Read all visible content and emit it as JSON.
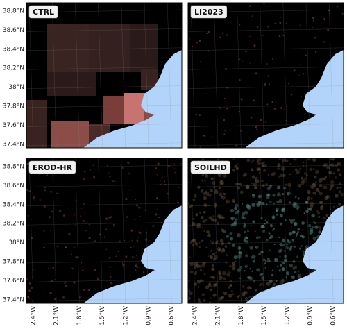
{
  "panels": [
    {
      "label": "CTRL"
    },
    {
      "label": "LI2023"
    },
    {
      "label": "EROD-HR"
    },
    {
      "label": "SOILHD"
    }
  ],
  "lat_labels": [
    "38.8°N",
    "38.6°N",
    "38.4°N",
    "38.2°N",
    "38°N",
    "37.8°N",
    "37.6°N",
    "37.4°N"
  ],
  "lon_labels": [
    "2.4°W",
    "2.1°W",
    "1.8°W",
    "1.5°W",
    "1.2°W",
    "0.9°W",
    "0.6°W"
  ]
}
